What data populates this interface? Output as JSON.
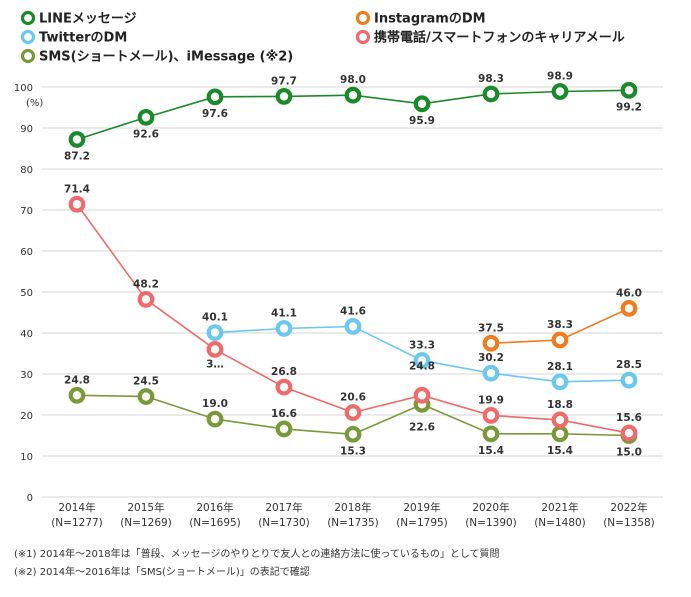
{
  "chart_data": {
    "type": "line",
    "ylabel": "(%)",
    "ylim": [
      0,
      100
    ],
    "yticks": [
      0,
      10,
      20,
      30,
      40,
      50,
      60,
      70,
      80,
      90,
      100
    ],
    "grid": true,
    "legend_placement": "top",
    "categories": [
      {
        "year": "2014年",
        "n": "(N=1277)"
      },
      {
        "year": "2015年",
        "n": "(N=1269)"
      },
      {
        "year": "2016年",
        "n": "(N=1695)"
      },
      {
        "year": "2017年",
        "n": "(N=1730)"
      },
      {
        "year": "2018年",
        "n": "(N=1735)"
      },
      {
        "year": "2019年",
        "n": "(N=1795)"
      },
      {
        "year": "2020年",
        "n": "(N=1390)"
      },
      {
        "year": "2021年",
        "n": "(N=1480)"
      },
      {
        "year": "2022年",
        "n": "(N=1358)"
      }
    ],
    "series": [
      {
        "name": "LINEメッセージ",
        "color": "#1a8a2a",
        "values": [
          87.2,
          92.6,
          97.6,
          97.7,
          98.0,
          95.9,
          98.3,
          98.9,
          99.2
        ],
        "labels": [
          "87.2",
          "92.6",
          "97.6",
          "97.7",
          "98.0",
          "95.9",
          "98.3",
          "98.9",
          "99.2"
        ]
      },
      {
        "name": "InstagramのDM",
        "color": "#f07c1e",
        "values": [
          null,
          null,
          null,
          null,
          null,
          null,
          37.5,
          38.3,
          46.0
        ],
        "labels": [
          null,
          null,
          null,
          null,
          null,
          null,
          "37.5",
          "38.3",
          "46.0"
        ]
      },
      {
        "name": "TwitterのDM",
        "color": "#6cc8ee",
        "values": [
          null,
          null,
          40.1,
          41.1,
          41.6,
          33.3,
          30.2,
          28.1,
          28.5
        ],
        "labels": [
          null,
          null,
          "40.1",
          "41.1",
          "41.6",
          "33.3",
          "30.2",
          "28.1",
          "28.5"
        ]
      },
      {
        "name": "携帯電話/スマートフォンのキャリアメール",
        "color": "#ef6a6a",
        "values": [
          71.4,
          48.2,
          36.0,
          26.8,
          20.6,
          24.8,
          19.9,
          18.8,
          15.6
        ],
        "labels": [
          "71.4",
          "48.2",
          "3…",
          "26.8",
          "20.6",
          "24.8",
          "19.9",
          "18.8",
          "15.6"
        ]
      },
      {
        "name": "SMS(ショートメール)、iMessage (※2)",
        "color": "#7a9a3a",
        "values": [
          24.8,
          24.5,
          19.0,
          16.6,
          15.3,
          22.6,
          15.4,
          15.4,
          15.0
        ],
        "labels": [
          "24.8",
          "24.5",
          "19.0",
          "16.6",
          "15.3",
          "22.6",
          "15.4",
          "15.4",
          "15.0"
        ]
      }
    ],
    "notes": [
      "(※1) 2014年～2018年は「普段、メッセージのやりとりで友人との連絡方法に使っているもの」として質問",
      "(※2) 2014年～2016年は「SMS(ショートメール)」の表記で確認"
    ]
  }
}
